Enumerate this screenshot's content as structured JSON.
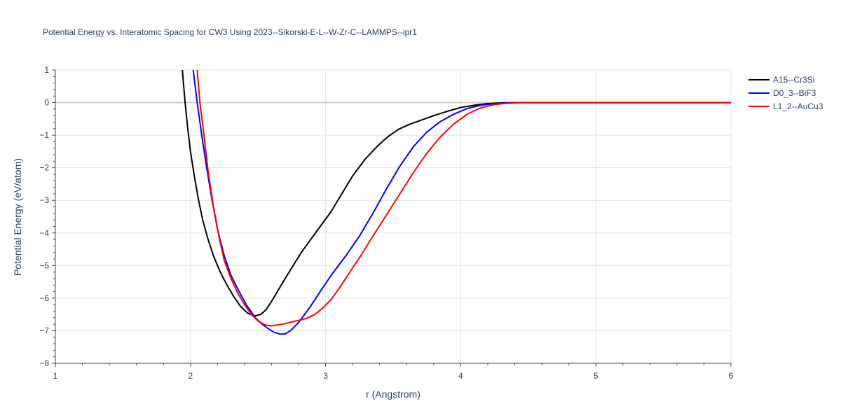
{
  "chart_data": {
    "type": "line",
    "title": "Potential Energy vs. Interatomic Spacing for CW3 Using 2023--Sikorski-E-L--W-Zr-C--LAMMPS--ipr1",
    "xlabel": "r (Angstrom)",
    "ylabel": "Potential Energy (eV/atom)",
    "xlim": [
      1,
      6
    ],
    "ylim": [
      -8,
      1
    ],
    "xticks": [
      1,
      2,
      3,
      4,
      5,
      6
    ],
    "xtick_labels": [
      "1",
      "2",
      "3",
      "4",
      "5",
      "6"
    ],
    "yticks": [
      1,
      0,
      -1,
      -2,
      -3,
      -4,
      -5,
      -6,
      -7,
      -8
    ],
    "ytick_labels": [
      "1",
      "0",
      "−1",
      "−2",
      "−3",
      "−4",
      "−5",
      "−6",
      "−7",
      "−8"
    ],
    "grid": true,
    "legend_position": "top-right",
    "series": [
      {
        "name": "A15--Cr3Si",
        "color": "#000000",
        "x": [
          1.94,
          1.96,
          1.98,
          2.0,
          2.03,
          2.06,
          2.09,
          2.13,
          2.17,
          2.22,
          2.27,
          2.32,
          2.37,
          2.42,
          2.47,
          2.52,
          2.56,
          2.6,
          2.65,
          2.7,
          2.76,
          2.82,
          2.89,
          2.96,
          3.04,
          3.12,
          3.2,
          3.29,
          3.38,
          3.46,
          3.54,
          3.62,
          3.7,
          3.8,
          3.9,
          4.0,
          4.1,
          4.2,
          4.3,
          4.4,
          4.6,
          5.0,
          5.5,
          6.0
        ],
        "y": [
          1.0,
          0.0,
          -0.8,
          -1.5,
          -2.3,
          -3.0,
          -3.6,
          -4.2,
          -4.7,
          -5.2,
          -5.6,
          -5.95,
          -6.25,
          -6.45,
          -6.55,
          -6.5,
          -6.35,
          -6.1,
          -5.75,
          -5.4,
          -5.0,
          -4.6,
          -4.2,
          -3.8,
          -3.35,
          -2.8,
          -2.25,
          -1.75,
          -1.35,
          -1.05,
          -0.82,
          -0.67,
          -0.55,
          -0.4,
          -0.27,
          -0.15,
          -0.08,
          -0.03,
          -0.01,
          0.0,
          0.0,
          0.0,
          0.0,
          0.0
        ]
      },
      {
        "name": "D0_3--BiF3",
        "color": "#0000ff",
        "x": [
          2.02,
          2.05,
          2.08,
          2.12,
          2.16,
          2.2,
          2.25,
          2.3,
          2.36,
          2.42,
          2.48,
          2.53,
          2.58,
          2.62,
          2.66,
          2.7,
          2.74,
          2.8,
          2.88,
          2.96,
          3.05,
          3.15,
          3.25,
          3.35,
          3.45,
          3.55,
          3.65,
          3.75,
          3.85,
          3.95,
          4.05,
          4.15,
          4.25,
          4.35,
          4.45,
          5.0,
          6.0
        ],
        "y": [
          1.0,
          0.0,
          -0.9,
          -2.0,
          -3.0,
          -3.9,
          -4.7,
          -5.3,
          -5.8,
          -6.25,
          -6.6,
          -6.8,
          -6.95,
          -7.05,
          -7.1,
          -7.1,
          -7.0,
          -6.75,
          -6.3,
          -5.8,
          -5.25,
          -4.7,
          -4.1,
          -3.4,
          -2.65,
          -1.95,
          -1.35,
          -0.9,
          -0.58,
          -0.35,
          -0.18,
          -0.08,
          -0.03,
          -0.01,
          0.0,
          0.0,
          0.0
        ]
      },
      {
        "name": "L1_2--AuCu3",
        "color": "#ff0000",
        "x": [
          2.05,
          2.07,
          2.1,
          2.13,
          2.17,
          2.21,
          2.25,
          2.3,
          2.35,
          2.4,
          2.45,
          2.5,
          2.55,
          2.6,
          2.65,
          2.7,
          2.78,
          2.86,
          2.92,
          2.98,
          3.04,
          3.1,
          3.18,
          3.26,
          3.35,
          3.45,
          3.55,
          3.65,
          3.75,
          3.85,
          3.95,
          4.05,
          4.15,
          4.25,
          4.35,
          4.45,
          5.0,
          6.0
        ],
        "y": [
          1.0,
          0.0,
          -1.0,
          -2.1,
          -3.2,
          -4.1,
          -4.85,
          -5.4,
          -5.85,
          -6.2,
          -6.5,
          -6.7,
          -6.82,
          -6.85,
          -6.82,
          -6.78,
          -6.7,
          -6.62,
          -6.5,
          -6.3,
          -6.05,
          -5.7,
          -5.2,
          -4.7,
          -4.1,
          -3.45,
          -2.8,
          -2.15,
          -1.55,
          -1.05,
          -0.65,
          -0.35,
          -0.16,
          -0.06,
          -0.02,
          0.0,
          0.0,
          0.0
        ]
      }
    ]
  }
}
